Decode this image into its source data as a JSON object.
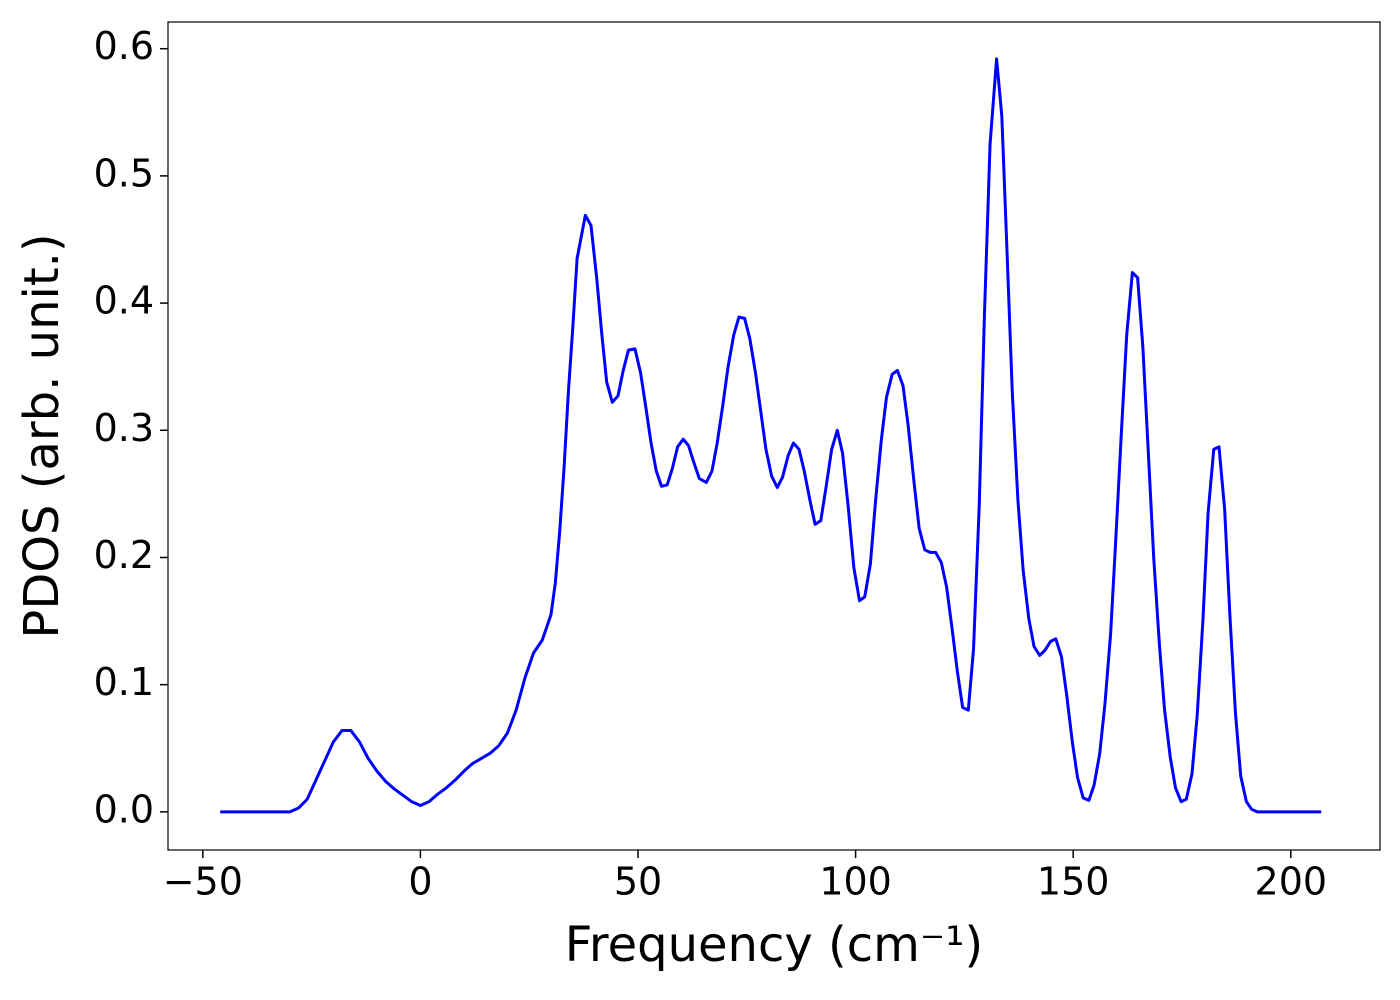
{
  "chart_data": {
    "type": "line",
    "xlabel": "Frequency (cm⁻¹)",
    "ylabel": "PDOS (arb. unit.)",
    "color": "#0000ff",
    "xlim": [
      -58,
      220.5
    ],
    "ylim": [
      -0.03,
      0.621
    ],
    "xticks": [
      {
        "value": -50,
        "label": "−50"
      },
      0,
      50,
      100,
      150,
      200
    ],
    "yticks": [
      {
        "value": 0,
        "label": "0.0"
      },
      0.1,
      0.2,
      0.3,
      0.4,
      0.5,
      0.6
    ],
    "grid": false,
    "x": [
      -46,
      -30,
      -28,
      -26,
      -24,
      -22,
      -20,
      -18,
      -16,
      -14,
      -12,
      -10,
      -8,
      -6,
      -4,
      -2,
      0,
      2,
      4,
      6,
      8,
      10,
      12,
      14,
      16,
      18,
      20,
      22,
      24,
      26,
      28,
      30,
      31,
      32,
      33,
      34,
      35,
      36,
      37.9,
      39.2,
      40.5,
      41.7,
      42.8,
      44.1,
      45.4,
      46.6,
      47.8,
      49.3,
      50.6,
      51.8,
      53.0,
      54.2,
      55.4,
      56.7,
      57.9,
      59.1,
      60.4,
      61.6,
      62.8,
      64.1,
      65.7,
      67.0,
      68.2,
      69.5,
      70.7,
      72.0,
      73.2,
      74.5,
      75.7,
      77.0,
      78.2,
      79.4,
      80.7,
      82.0,
      83.2,
      84.5,
      85.7,
      87.0,
      88.2,
      89.5,
      90.7,
      92.0,
      93.2,
      94.5,
      95.8,
      97.0,
      98.3,
      99.6,
      100.9,
      102.1,
      103.4,
      104.6,
      105.9,
      107.1,
      108.4,
      109.6,
      110.9,
      112.1,
      113.4,
      114.6,
      115.9,
      117.1,
      118.4,
      119.7,
      120.9,
      122.1,
      123.4,
      124.6,
      125.9,
      127.1,
      128.4,
      129.6,
      130.9,
      132.4,
      133.6,
      134.8,
      136.0,
      137.3,
      138.5,
      139.8,
      141.0,
      142.3,
      143.5,
      144.8,
      146.0,
      147.3,
      148.5,
      149.8,
      151.0,
      152.3,
      153.6,
      154.8,
      156.1,
      157.3,
      158.6,
      159.8,
      161.1,
      162.3,
      163.6,
      164.8,
      166.0,
      167.3,
      168.5,
      169.8,
      171.0,
      172.3,
      173.5,
      174.8,
      176.0,
      177.3,
      178.5,
      179.8,
      181.0,
      182.3,
      183.5,
      184.8,
      186.0,
      187.3,
      188.5,
      189.8,
      191.0,
      192.3,
      207.0
    ],
    "values": [
      0,
      0,
      0.003,
      0.01,
      0.025,
      0.04,
      0.055,
      0.064,
      0.064,
      0.055,
      0.042,
      0.032,
      0.024,
      0.018,
      0.013,
      0.008,
      0.005,
      0.008,
      0.014,
      0.019,
      0.025,
      0.032,
      0.038,
      0.042,
      0.046,
      0.052,
      0.062,
      0.08,
      0.105,
      0.125,
      0.135,
      0.155,
      0.18,
      0.22,
      0.27,
      0.33,
      0.38,
      0.435,
      0.469,
      0.461,
      0.42,
      0.375,
      0.338,
      0.322,
      0.327,
      0.347,
      0.363,
      0.364,
      0.345,
      0.318,
      0.29,
      0.268,
      0.256,
      0.257,
      0.27,
      0.287,
      0.293,
      0.288,
      0.275,
      0.262,
      0.259,
      0.268,
      0.29,
      0.32,
      0.35,
      0.375,
      0.389,
      0.388,
      0.372,
      0.345,
      0.315,
      0.285,
      0.264,
      0.255,
      0.263,
      0.28,
      0.29,
      0.285,
      0.268,
      0.245,
      0.226,
      0.229,
      0.255,
      0.285,
      0.3,
      0.282,
      0.24,
      0.192,
      0.166,
      0.169,
      0.195,
      0.245,
      0.292,
      0.326,
      0.344,
      0.347,
      0.335,
      0.303,
      0.26,
      0.223,
      0.206,
      0.204,
      0.204,
      0.196,
      0.177,
      0.146,
      0.11,
      0.082,
      0.08,
      0.128,
      0.24,
      0.39,
      0.525,
      0.592,
      0.547,
      0.44,
      0.33,
      0.245,
      0.19,
      0.152,
      0.13,
      0.123,
      0.127,
      0.134,
      0.136,
      0.122,
      0.092,
      0.055,
      0.027,
      0.011,
      0.009,
      0.021,
      0.046,
      0.085,
      0.14,
      0.215,
      0.3,
      0.375,
      0.424,
      0.42,
      0.366,
      0.28,
      0.2,
      0.132,
      0.08,
      0.043,
      0.019,
      0.008,
      0.01,
      0.03,
      0.076,
      0.15,
      0.235,
      0.285,
      0.287,
      0.238,
      0.155,
      0.077,
      0.028,
      0.008,
      0.002,
      0,
      0
    ]
  }
}
